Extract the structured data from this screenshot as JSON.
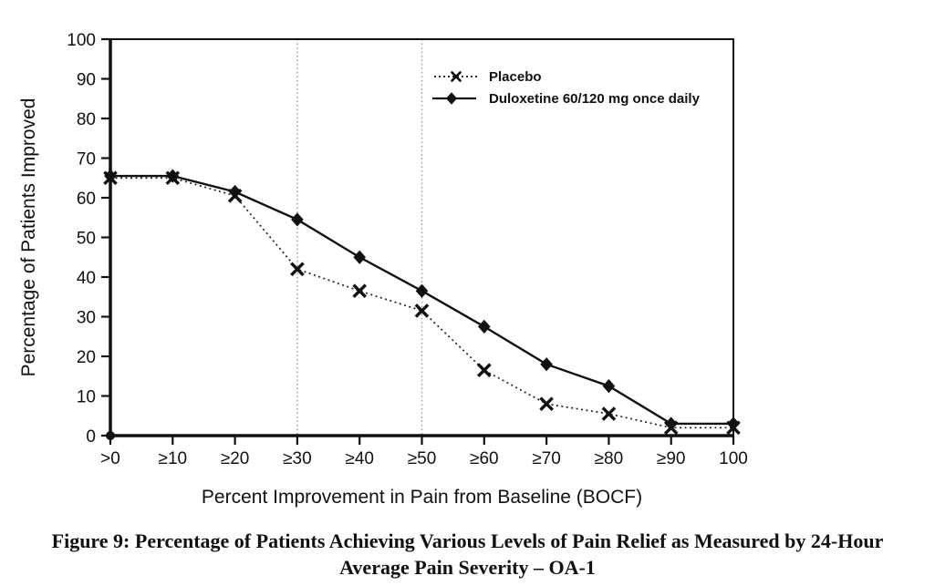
{
  "figure": {
    "caption_line1": "Figure 9: Percentage of Patients Achieving Various Levels of Pain Relief as Measured by 24-Hour",
    "caption_line2": "Average Pain Severity – OA-1"
  },
  "chart_data": {
    "type": "line",
    "title": "",
    "xlabel": "Percent Improvement in Pain from Baseline (BOCF)",
    "ylabel": "Percentage of Patients Improved",
    "categories": [
      ">0",
      "≥10",
      "≥20",
      "≥30",
      "≥40",
      "≥50",
      "≥60",
      "≥70",
      "≥80",
      "≥90",
      "100"
    ],
    "yticks": [
      0,
      10,
      20,
      30,
      40,
      50,
      60,
      70,
      80,
      90,
      100
    ],
    "ylim": [
      0,
      100
    ],
    "grid": "vertical dotted reference lines at ≥30 and ≥50 only",
    "gridline_category_indexes": [
      3,
      5
    ],
    "legend_position": "inside top-right of plot",
    "series": [
      {
        "name": "Placebo",
        "marker": "x",
        "line": "dotted",
        "color": "#222222",
        "values": [
          65,
          65,
          60.5,
          42,
          36.5,
          31.5,
          16.5,
          8,
          5.5,
          2,
          2
        ]
      },
      {
        "name": "Duloxetine 60/120 mg once daily",
        "marker": "diamond",
        "line": "solid",
        "color": "#111111",
        "values": [
          65.5,
          65.5,
          61.5,
          54.5,
          45,
          36.5,
          27.5,
          18,
          12.5,
          3,
          3
        ]
      }
    ]
  },
  "colors": {
    "axis": "#111111",
    "gridline": "#999999",
    "text": "#111111",
    "background": "#ffffff"
  }
}
